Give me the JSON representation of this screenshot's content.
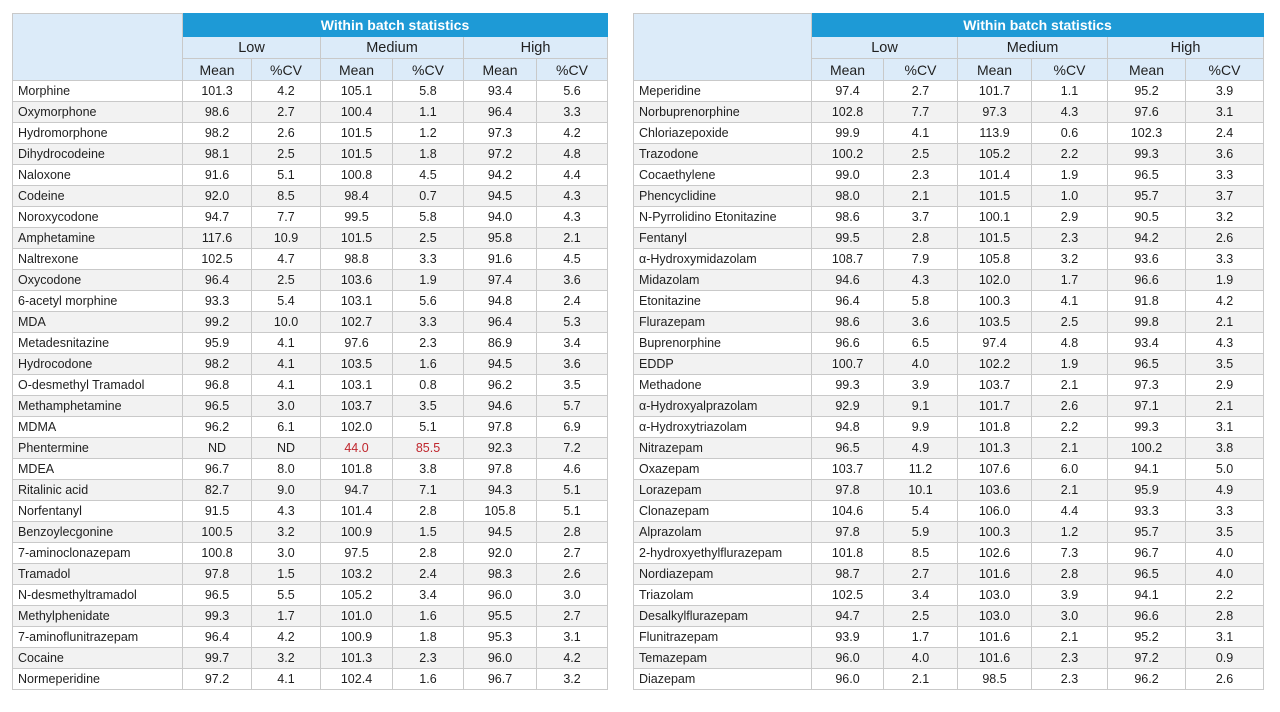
{
  "left_table": {
    "banner": "Within batch statistics",
    "groups": [
      "Low",
      "Medium",
      "High"
    ],
    "subheaders": [
      "Mean",
      "%CV",
      "Mean",
      "%CV",
      "Mean",
      "%CV"
    ],
    "rows": [
      {
        "name": "Morphine",
        "values": [
          "101.3",
          "4.2",
          "105.1",
          "5.8",
          "93.4",
          "5.6"
        ]
      },
      {
        "name": "Oxymorphone",
        "values": [
          "98.6",
          "2.7",
          "100.4",
          "1.1",
          "96.4",
          "3.3"
        ]
      },
      {
        "name": "Hydromorphone",
        "values": [
          "98.2",
          "2.6",
          "101.5",
          "1.2",
          "97.3",
          "4.2"
        ]
      },
      {
        "name": "Dihydrocodeine",
        "values": [
          "98.1",
          "2.5",
          "101.5",
          "1.8",
          "97.2",
          "4.8"
        ]
      },
      {
        "name": "Naloxone",
        "values": [
          "91.6",
          "5.1",
          "100.8",
          "4.5",
          "94.2",
          "4.4"
        ]
      },
      {
        "name": "Codeine",
        "values": [
          "92.0",
          "8.5",
          "98.4",
          "0.7",
          "94.5",
          "4.3"
        ]
      },
      {
        "name": "Noroxycodone",
        "values": [
          "94.7",
          "7.7",
          "99.5",
          "5.8",
          "94.0",
          "4.3"
        ]
      },
      {
        "name": "Amphetamine",
        "values": [
          "117.6",
          "10.9",
          "101.5",
          "2.5",
          "95.8",
          "2.1"
        ]
      },
      {
        "name": "Naltrexone",
        "values": [
          "102.5",
          "4.7",
          "98.8",
          "3.3",
          "91.6",
          "4.5"
        ]
      },
      {
        "name": "Oxycodone",
        "values": [
          "96.4",
          "2.5",
          "103.6",
          "1.9",
          "97.4",
          "3.6"
        ]
      },
      {
        "name": "6-acetyl morphine",
        "values": [
          "93.3",
          "5.4",
          "103.1",
          "5.6",
          "94.8",
          "2.4"
        ]
      },
      {
        "name": "MDA",
        "values": [
          "99.2",
          "10.0",
          "102.7",
          "3.3",
          "96.4",
          "5.3"
        ]
      },
      {
        "name": "Metadesnitazine",
        "values": [
          "95.9",
          "4.1",
          "97.6",
          "2.3",
          "86.9",
          "3.4"
        ]
      },
      {
        "name": "Hydrocodone",
        "values": [
          "98.2",
          "4.1",
          "103.5",
          "1.6",
          "94.5",
          "3.6"
        ]
      },
      {
        "name": "O-desmethyl Tramadol",
        "values": [
          "96.8",
          "4.1",
          "103.1",
          "0.8",
          "96.2",
          "3.5"
        ]
      },
      {
        "name": "Methamphetamine",
        "values": [
          "96.5",
          "3.0",
          "103.7",
          "3.5",
          "94.6",
          "5.7"
        ]
      },
      {
        "name": "MDMA",
        "values": [
          "96.2",
          "6.1",
          "102.0",
          "5.1",
          "97.8",
          "6.9"
        ]
      },
      {
        "name": "Phentermine",
        "values": [
          "ND",
          "ND",
          "44.0",
          "85.5",
          "92.3",
          "7.2"
        ],
        "flagged": [
          false,
          false,
          true,
          true,
          false,
          false
        ]
      },
      {
        "name": "MDEA",
        "values": [
          "96.7",
          "8.0",
          "101.8",
          "3.8",
          "97.8",
          "4.6"
        ]
      },
      {
        "name": "Ritalinic acid",
        "values": [
          "82.7",
          "9.0",
          "94.7",
          "7.1",
          "94.3",
          "5.1"
        ]
      },
      {
        "name": "Norfentanyl",
        "values": [
          "91.5",
          "4.3",
          "101.4",
          "2.8",
          "105.8",
          "5.1"
        ]
      },
      {
        "name": "Benzoylecgonine",
        "values": [
          "100.5",
          "3.2",
          "100.9",
          "1.5",
          "94.5",
          "2.8"
        ]
      },
      {
        "name": "7-aminoclonazepam",
        "values": [
          "100.8",
          "3.0",
          "97.5",
          "2.8",
          "92.0",
          "2.7"
        ]
      },
      {
        "name": "Tramadol",
        "values": [
          "97.8",
          "1.5",
          "103.2",
          "2.4",
          "98.3",
          "2.6"
        ]
      },
      {
        "name": "N-desmethyltramadol",
        "values": [
          "96.5",
          "5.5",
          "105.2",
          "3.4",
          "96.0",
          "3.0"
        ]
      },
      {
        "name": "Methylphenidate",
        "values": [
          "99.3",
          "1.7",
          "101.0",
          "1.6",
          "95.5",
          "2.7"
        ]
      },
      {
        "name": "7-aminoflunitrazepam",
        "values": [
          "96.4",
          "4.2",
          "100.9",
          "1.8",
          "95.3",
          "3.1"
        ]
      },
      {
        "name": "Cocaine",
        "values": [
          "99.7",
          "3.2",
          "101.3",
          "2.3",
          "96.0",
          "4.2"
        ]
      },
      {
        "name": "Normeperidine",
        "values": [
          "97.2",
          "4.1",
          "102.4",
          "1.6",
          "96.7",
          "3.2"
        ]
      }
    ]
  },
  "right_table": {
    "banner": "Within batch statistics",
    "groups": [
      "Low",
      "Medium",
      "High"
    ],
    "subheaders": [
      "Mean",
      "%CV",
      "Mean",
      "%CV",
      "Mean",
      "%CV"
    ],
    "rows": [
      {
        "name": "Meperidine",
        "values": [
          "97.4",
          "2.7",
          "101.7",
          "1.1",
          "95.2",
          "3.9"
        ]
      },
      {
        "name": "Norbuprenorphine",
        "values": [
          "102.8",
          "7.7",
          "97.3",
          "4.3",
          "97.6",
          "3.1"
        ]
      },
      {
        "name": "Chloriazepoxide",
        "values": [
          "99.9",
          "4.1",
          "113.9",
          "0.6",
          "102.3",
          "2.4"
        ]
      },
      {
        "name": "Trazodone",
        "values": [
          "100.2",
          "2.5",
          "105.2",
          "2.2",
          "99.3",
          "3.6"
        ]
      },
      {
        "name": "Cocaethylene",
        "values": [
          "99.0",
          "2.3",
          "101.4",
          "1.9",
          "96.5",
          "3.3"
        ]
      },
      {
        "name": "Phencyclidine",
        "values": [
          "98.0",
          "2.1",
          "101.5",
          "1.0",
          "95.7",
          "3.7"
        ]
      },
      {
        "name": "N-Pyrrolidino Etonitazine",
        "values": [
          "98.6",
          "3.7",
          "100.1",
          "2.9",
          "90.5",
          "3.2"
        ]
      },
      {
        "name": "Fentanyl",
        "values": [
          "99.5",
          "2.8",
          "101.5",
          "2.3",
          "94.2",
          "2.6"
        ]
      },
      {
        "name": "α-Hydroxymidazolam",
        "values": [
          "108.7",
          "7.9",
          "105.8",
          "3.2",
          "93.6",
          "3.3"
        ]
      },
      {
        "name": "Midazolam",
        "values": [
          "94.6",
          "4.3",
          "102.0",
          "1.7",
          "96.6",
          "1.9"
        ]
      },
      {
        "name": "Etonitazine",
        "values": [
          "96.4",
          "5.8",
          "100.3",
          "4.1",
          "91.8",
          "4.2"
        ]
      },
      {
        "name": "Flurazepam",
        "values": [
          "98.6",
          "3.6",
          "103.5",
          "2.5",
          "99.8",
          "2.1"
        ]
      },
      {
        "name": "Buprenorphine",
        "values": [
          "96.6",
          "6.5",
          "97.4",
          "4.8",
          "93.4",
          "4.3"
        ]
      },
      {
        "name": "EDDP",
        "values": [
          "100.7",
          "4.0",
          "102.2",
          "1.9",
          "96.5",
          "3.5"
        ]
      },
      {
        "name": "Methadone",
        "values": [
          "99.3",
          "3.9",
          "103.7",
          "2.1",
          "97.3",
          "2.9"
        ]
      },
      {
        "name": "α-Hydroxyalprazolam",
        "values": [
          "92.9",
          "9.1",
          "101.7",
          "2.6",
          "97.1",
          "2.1"
        ]
      },
      {
        "name": "α-Hydroxytriazolam",
        "values": [
          "94.8",
          "9.9",
          "101.8",
          "2.2",
          "99.3",
          "3.1"
        ]
      },
      {
        "name": "Nitrazepam",
        "values": [
          "96.5",
          "4.9",
          "101.3",
          "2.1",
          "100.2",
          "3.8"
        ]
      },
      {
        "name": "Oxazepam",
        "values": [
          "103.7",
          "11.2",
          "107.6",
          "6.0",
          "94.1",
          "5.0"
        ]
      },
      {
        "name": "Lorazepam",
        "values": [
          "97.8",
          "10.1",
          "103.6",
          "2.1",
          "95.9",
          "4.9"
        ]
      },
      {
        "name": "Clonazepam",
        "values": [
          "104.6",
          "5.4",
          "106.0",
          "4.4",
          "93.3",
          "3.3"
        ]
      },
      {
        "name": "Alprazolam",
        "values": [
          "97.8",
          "5.9",
          "100.3",
          "1.2",
          "95.7",
          "3.5"
        ]
      },
      {
        "name": "2-hydroxyethylflurazepam",
        "values": [
          "101.8",
          "8.5",
          "102.6",
          "7.3",
          "96.7",
          "4.0"
        ]
      },
      {
        "name": "Nordiazepam",
        "values": [
          "98.7",
          "2.7",
          "101.6",
          "2.8",
          "96.5",
          "4.0"
        ]
      },
      {
        "name": "Triazolam",
        "values": [
          "102.5",
          "3.4",
          "103.0",
          "3.9",
          "94.1",
          "2.2"
        ]
      },
      {
        "name": "Desalkylflurazepam",
        "values": [
          "94.7",
          "2.5",
          "103.0",
          "3.0",
          "96.6",
          "2.8"
        ]
      },
      {
        "name": "Flunitrazepam",
        "values": [
          "93.9",
          "1.7",
          "101.6",
          "2.1",
          "95.2",
          "3.1"
        ]
      },
      {
        "name": "Temazepam",
        "values": [
          "96.0",
          "4.0",
          "101.6",
          "2.3",
          "97.2",
          "0.9"
        ]
      },
      {
        "name": "Diazepam",
        "values": [
          "96.0",
          "2.1",
          "98.5",
          "2.3",
          "96.2",
          "2.6"
        ]
      }
    ]
  },
  "colors": {
    "banner_bg": "#1e9ad6",
    "header_bg": "#dcebf9",
    "stripe_bg": "#f2f2f2",
    "flag_text": "#c0262d",
    "grid_line": "#c9c9c9"
  }
}
